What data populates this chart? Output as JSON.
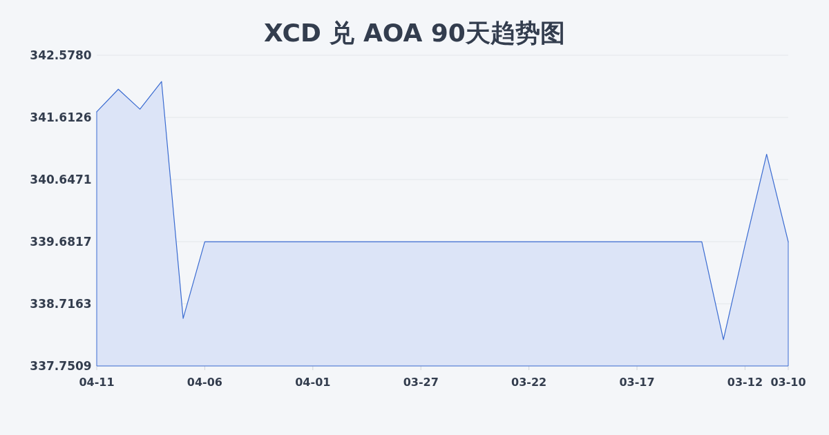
{
  "chart_data": {
    "type": "area",
    "title": "XCD 兑 AOA 90天趋势图",
    "categories": [
      "04-11",
      null,
      null,
      null,
      null,
      "04-06",
      null,
      null,
      null,
      null,
      "04-01",
      null,
      null,
      null,
      null,
      "03-27",
      null,
      null,
      null,
      null,
      "03-22",
      null,
      null,
      null,
      null,
      "03-17",
      null,
      null,
      null,
      null,
      "03-12",
      null,
      "03-10"
    ],
    "values": [
      341.7,
      342.05,
      341.74,
      342.17,
      338.49,
      339.68,
      339.68,
      339.68,
      339.68,
      339.68,
      339.68,
      339.68,
      339.68,
      339.68,
      339.68,
      339.68,
      339.68,
      339.68,
      339.68,
      339.68,
      339.68,
      339.68,
      339.68,
      339.68,
      339.68,
      339.68,
      339.68,
      339.68,
      339.68,
      338.16,
      339.63,
      341.04,
      339.68
    ],
    "color": "#3a6bd1",
    "ylim": [
      337.7509,
      342.578
    ],
    "yticks": [
      337.7509,
      338.7163,
      339.6817,
      340.6471,
      341.6126,
      {
        "value": 342.578,
        "label": "342.5780"
      }
    ],
    "grid": "y"
  }
}
